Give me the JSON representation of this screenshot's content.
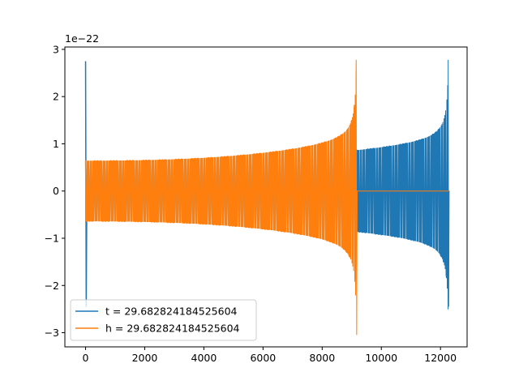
{
  "chart_data": {
    "type": "line",
    "title": "",
    "xlabel": "",
    "ylabel": "",
    "y_offset_label": "1e−22",
    "xlim": [
      -700,
      12900
    ],
    "ylim": [
      -3.3e-22,
      3.05e-22
    ],
    "x_ticks": [
      0,
      2000,
      4000,
      6000,
      8000,
      10000,
      12000
    ],
    "x_tick_labels": [
      "0",
      "2000",
      "4000",
      "6000",
      "8000",
      "10000",
      "12000"
    ],
    "y_ticks": [
      3e-22,
      2e-22,
      1e-22,
      0,
      -1e-22,
      -2e-22,
      -3e-22
    ],
    "y_tick_labels": [
      "3",
      "2",
      "1",
      "0",
      "−1",
      "−2",
      "−3"
    ],
    "grid": false,
    "legend_position": "lower-left",
    "series": [
      {
        "name": "t = 29.682824184525604",
        "color": "#1f77b4",
        "style": "oscillating chirp",
        "x_start": 0,
        "x_end": 12280,
        "amplitude_start": 6.2e-23,
        "amplitude_late": 1e-22,
        "initial_spike": {
          "x": 0,
          "max": 2.75e-22,
          "min": -2.45e-22
        },
        "merger": {
          "x": 12260,
          "max": 2.78e-22,
          "min": -2.45e-22
        },
        "ringdown_level": 0
      },
      {
        "name": "h = 29.682824184525604",
        "color": "#ff7f0e",
        "style": "oscillating chirp",
        "x_start": 0,
        "x_end": 12280,
        "amplitude_start": 6.2e-23,
        "amplitude_late": 1e-22,
        "initial_spike": {
          "x": 0,
          "max": 6.5e-23,
          "min": -6.2e-23
        },
        "merger": {
          "x": 9150,
          "max": 2.78e-22,
          "min": -3.05e-22
        },
        "ringdown_level": 0
      }
    ]
  }
}
